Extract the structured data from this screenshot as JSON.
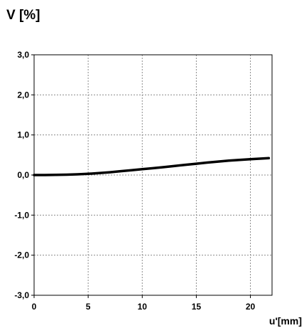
{
  "chart_data": {
    "type": "line",
    "title": "",
    "ylabel": "V [%]",
    "xlabel": "u'[mm]",
    "xlim": [
      0,
      22
    ],
    "ylim": [
      -3.0,
      3.0
    ],
    "x_ticks": [
      0,
      5,
      10,
      15,
      20
    ],
    "x_tick_labels": [
      "0",
      "5",
      "10",
      "15",
      "20"
    ],
    "y_ticks": [
      3.0,
      2.0,
      1.0,
      0.0,
      -1.0,
      -2.0,
      -3.0
    ],
    "y_tick_labels": [
      "3,0",
      "2,0",
      "1,0",
      "0,0",
      "-1,0",
      "-2,0",
      "-3,0"
    ],
    "grid": true,
    "legend": "none",
    "series": [
      {
        "color": "#000000",
        "x": [
          0,
          1,
          2,
          3,
          4,
          5,
          6,
          7,
          8,
          9,
          10,
          11,
          12,
          13,
          14,
          15,
          16,
          17,
          18,
          19,
          20,
          21,
          21.7
        ],
        "y": [
          0.0,
          0.0,
          0.003,
          0.008,
          0.018,
          0.03,
          0.048,
          0.07,
          0.095,
          0.12,
          0.145,
          0.17,
          0.197,
          0.225,
          0.255,
          0.283,
          0.31,
          0.335,
          0.358,
          0.378,
          0.395,
          0.41,
          0.42
        ]
      }
    ]
  }
}
